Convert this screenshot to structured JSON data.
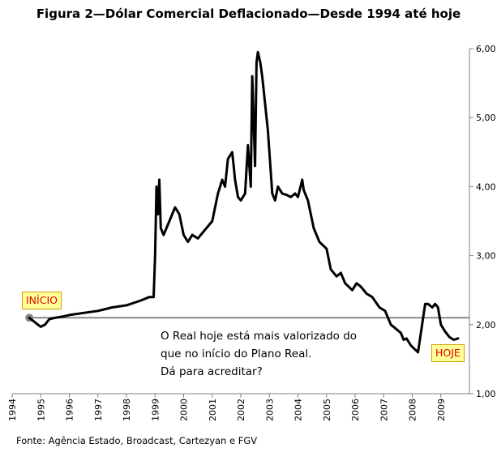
{
  "title": "Figura 2—Dólar Comercial Deflacionado—Desde 1994 até hoje",
  "source": "Fonte: Agência Estado, Broadcast, Cartezyan e FGV",
  "callouts": {
    "start": "INÍCIO",
    "today": "HOJE"
  },
  "note": {
    "line1": "O Real hoje está mais valorizado do",
    "line2": "que no início do Plano Real.",
    "line3": "Dá para acreditar?"
  },
  "colors": {
    "series": "#000000",
    "reference": "#888888",
    "callout_bg": "#ffff99",
    "callout_text": "#e00000"
  },
  "chart_data": {
    "type": "line",
    "title": "Figura 2—Dólar Comercial Deflacionado—Desde 1994 até hoje",
    "y_axis_position": "right",
    "ylim": [
      1.0,
      6.0
    ],
    "xlim": [
      1994,
      2010
    ],
    "y_ticks": [
      "1,00",
      "2,00",
      "3,00",
      "4,00",
      "5,00",
      "6,00"
    ],
    "x_ticks": [
      "1994",
      "1995",
      "1996",
      "1997",
      "1998",
      "1999",
      "2000",
      "2001",
      "2002",
      "2003",
      "2004",
      "2005",
      "2006",
      "2007",
      "2008",
      "2009"
    ],
    "grid": false,
    "reference_line": {
      "y": 2.1,
      "x_start": 1994.6
    },
    "start_marker": {
      "x": 1994.6,
      "y": 2.1
    },
    "series": [
      {
        "x": [
          1994.6,
          1994.75,
          1994.9,
          1995.0,
          1995.15,
          1995.3,
          1995.5,
          1995.8,
          1996.0,
          1996.5,
          1997.0,
          1997.5,
          1998.0,
          1998.5,
          1998.8,
          1998.95,
          1999.0,
          1999.05,
          1999.1,
          1999.15,
          1999.2,
          1999.3,
          1999.5,
          1999.7,
          1999.85,
          2000.0,
          2000.15,
          2000.3,
          2000.5,
          2000.8,
          2001.0,
          2001.2,
          2001.35,
          2001.45,
          2001.55,
          2001.7,
          2001.75,
          2001.8,
          2001.9,
          2002.0,
          2002.15,
          2002.25,
          2002.35,
          2002.4,
          2002.5,
          2002.55,
          2002.6,
          2002.68,
          2002.75,
          2002.85,
          2002.95,
          2003.1,
          2003.2,
          2003.3,
          2003.45,
          2003.6,
          2003.75,
          2003.9,
          2004.0,
          2004.15,
          2004.2,
          2004.35,
          2004.55,
          2004.75,
          2005.0,
          2005.15,
          2005.35,
          2005.5,
          2005.65,
          2005.9,
          2006.05,
          2006.2,
          2006.3,
          2006.4,
          2006.6,
          2006.85,
          2007.05,
          2007.25,
          2007.4,
          2007.6,
          2007.7,
          2007.8,
          2007.95,
          2008.2,
          2008.45,
          2008.55,
          2008.7,
          2008.8,
          2008.9,
          2009.0,
          2009.15,
          2009.3,
          2009.45,
          2009.6
        ],
        "y": [
          2.1,
          2.05,
          2.0,
          1.97,
          2.0,
          2.08,
          2.1,
          2.12,
          2.14,
          2.17,
          2.2,
          2.25,
          2.28,
          2.35,
          2.4,
          2.4,
          3.0,
          4.0,
          3.6,
          4.1,
          3.4,
          3.3,
          3.5,
          3.7,
          3.6,
          3.3,
          3.2,
          3.3,
          3.25,
          3.4,
          3.5,
          3.9,
          4.1,
          4.0,
          4.4,
          4.5,
          4.3,
          4.1,
          3.85,
          3.8,
          3.9,
          4.6,
          4.0,
          5.6,
          4.3,
          5.8,
          5.95,
          5.8,
          5.6,
          5.2,
          4.8,
          3.9,
          3.8,
          4.0,
          3.9,
          3.88,
          3.85,
          3.9,
          3.85,
          4.1,
          3.95,
          3.8,
          3.4,
          3.2,
          3.1,
          2.8,
          2.7,
          2.75,
          2.6,
          2.5,
          2.6,
          2.55,
          2.5,
          2.45,
          2.4,
          2.25,
          2.2,
          2.0,
          1.95,
          1.88,
          1.78,
          1.8,
          1.7,
          1.6,
          2.3,
          2.3,
          2.25,
          2.3,
          2.25,
          2.0,
          1.9,
          1.82,
          1.78,
          1.8
        ]
      }
    ]
  }
}
